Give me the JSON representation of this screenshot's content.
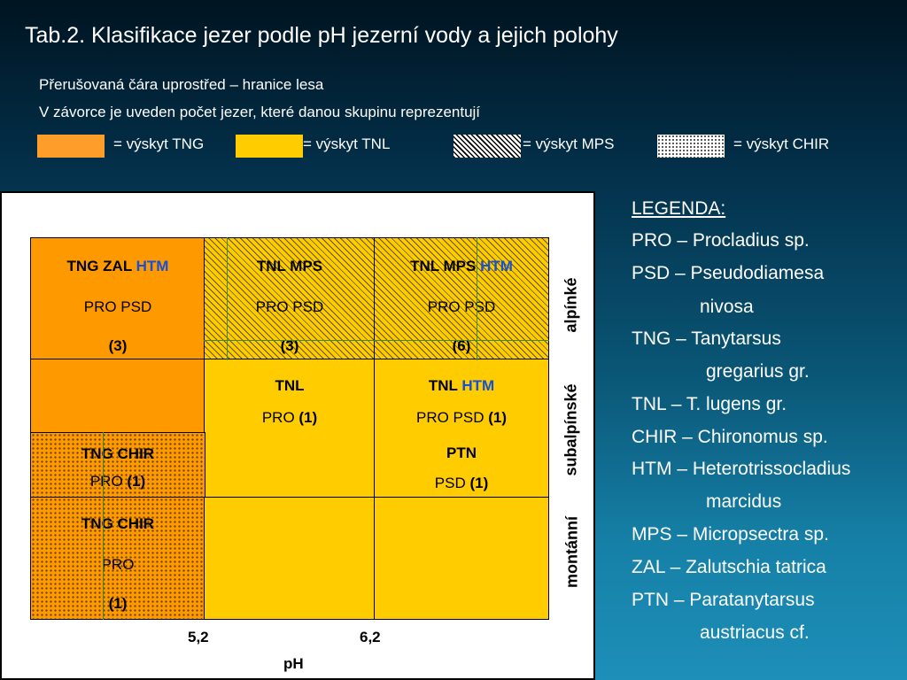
{
  "title": "Tab.2. Klasifikace jezer podle pH jezerní vody a jejich polohy",
  "subtitle1": "Přerušovaná čára uprostřed – hranice lesa",
  "subtitle2": "V závorce je uveden počet jezer, které danou skupinu reprezentují",
  "swatches": {
    "tng": "= výskyt TNG",
    "tnl": "= výskyt TNL",
    "mps": "= výskyt MPS",
    "chir": "= výskyt CHIR"
  },
  "colors": {
    "orange": "#ff9900",
    "yellow": "#ffcc00",
    "htm_blue": "#1450d8"
  },
  "cells": {
    "r1c1": {
      "l1": "TNG ZAL ",
      "l1b": "HTM",
      "l2": "PRO PSD",
      "l3": "(3)"
    },
    "r1c2": {
      "l1": "TNL MPS",
      "l2": "PRO PSD",
      "l3": "(3)"
    },
    "r1c3": {
      "l1": "TNL MPS ",
      "l1b": "HTM",
      "l2": "PRO PSD",
      "l3": "(6)"
    },
    "r2c2": {
      "l1": "TNL",
      "l2": "PRO ",
      "l2b": "(1)"
    },
    "r2c3": {
      "l1": "TNL ",
      "l1b": "HTM",
      "l2": "PRO PSD ",
      "l2b": "(1)"
    },
    "r3c1": {
      "l1": "TNG CHIR",
      "l2": "PRO  ",
      "l2b": "(1)"
    },
    "r3c3": {
      "l1": "PTN",
      "l2": "PSD ",
      "l2b": "(1)"
    },
    "r4c1": {
      "l1": "TNG CHIR",
      "l2": "PRO",
      "l3": "(1)"
    }
  },
  "axis": {
    "tick1": "5,2",
    "tick2": "6,2",
    "label": "pH"
  },
  "zones": {
    "alpine": "alpínké",
    "subalpine": "subalpínské",
    "montane": "montánní"
  },
  "legend": {
    "title": "LEGENDA:",
    "items": [
      "PRO – Procladius sp.",
      "PSD – Pseudodiamesa",
      "nivosa",
      "TNG – Tanytarsus",
      "gregarius gr.",
      "TNL – T. lugens gr.",
      "CHIR – Chironomus sp.",
      "HTM – Heterotrissocladius",
      "marcidus",
      "MPS – Micropsectra sp.",
      "ZAL – Zalutschia tatrica",
      "PTN – Paratanytarsus",
      "austriacus cf."
    ]
  }
}
